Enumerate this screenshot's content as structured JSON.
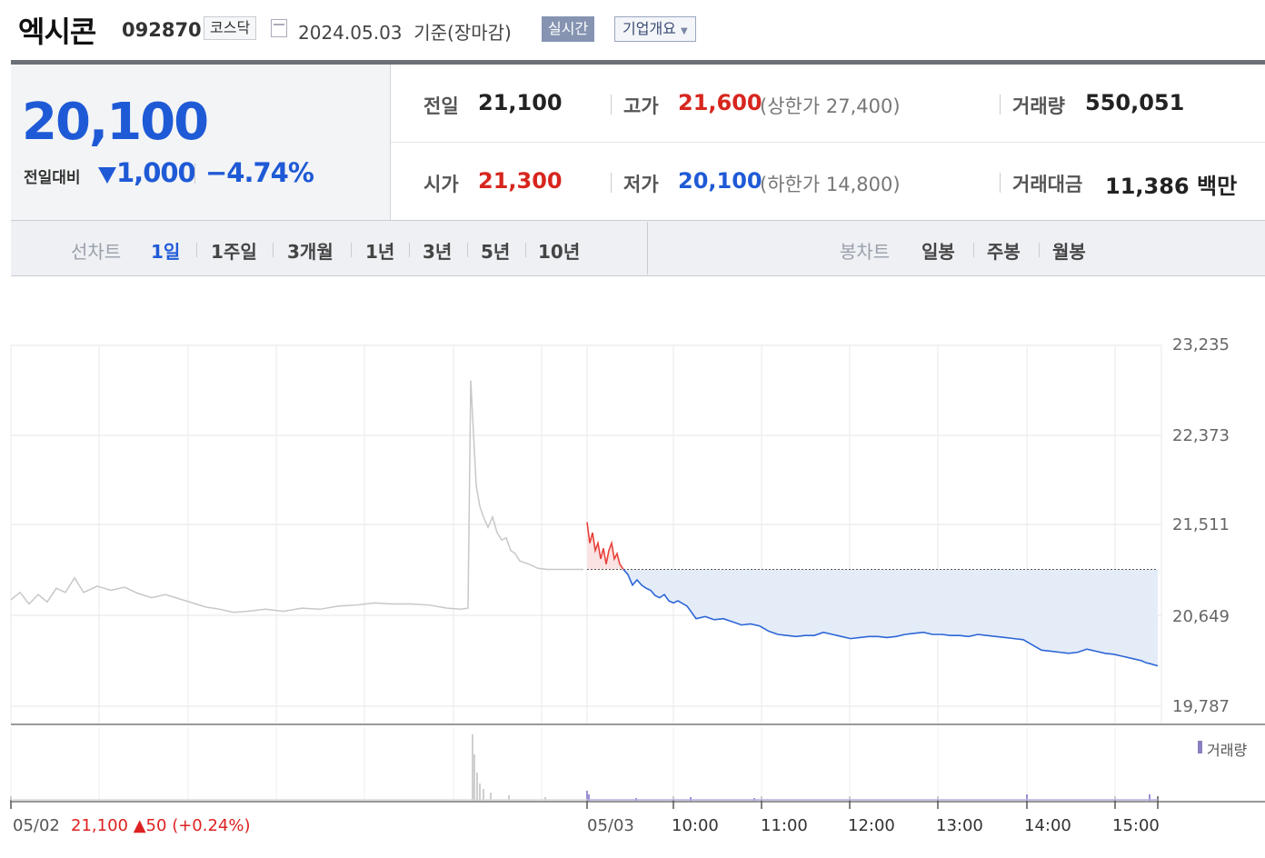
{
  "header": {
    "name": "엑시콘",
    "code": "092870",
    "market": "코스닥",
    "date": "2024.05.03",
    "basis": "기준(장마감)",
    "realtime": "실시간",
    "corp_info": "기업개요"
  },
  "quote": {
    "price": "20,100",
    "compare_label": "전일대비",
    "change": "1,000",
    "change_pct": "−4.74%",
    "direction": "down"
  },
  "stats": {
    "prev_label": "전일",
    "prev": "21,100",
    "high_label": "고가",
    "high": "21,600",
    "upper_label": "(상한가",
    "upper": "27,400)",
    "volume_label": "거래량",
    "volume": "550,051",
    "open_label": "시가",
    "open": "21,300",
    "low_label": "저가",
    "low": "20,100",
    "lower_label": "(하한가",
    "lower": "14,800)",
    "amount_label": "거래대금",
    "amount": "11,386",
    "amount_unit": "백만"
  },
  "periods": {
    "line_label": "선차트",
    "line_items": [
      "1일",
      "1주일",
      "3개월",
      "1년",
      "3년",
      "5년",
      "10년"
    ],
    "active": "1일",
    "candle_label": "봉차트",
    "candle_items": [
      "일봉",
      "주봉",
      "월봉"
    ]
  },
  "chart_data": {
    "type": "line",
    "y_ticks": [
      "23,235",
      "22,373",
      "21,511",
      "20,649",
      "19,787"
    ],
    "ylim": [
      19787,
      23235
    ],
    "x_ticks": [
      "05/02",
      "05/03",
      "10:00",
      "11:00",
      "12:00",
      "13:00",
      "14:00",
      "15:00"
    ],
    "reference_price": 21100,
    "prev_day_close": "21,100",
    "prev_day_change": "▲50",
    "prev_day_change_pct": "(+0.24%)",
    "volume_legend": "거래량",
    "series_prev_day": [
      [
        0,
        20810
      ],
      [
        10,
        20880
      ],
      [
        20,
        20770
      ],
      [
        30,
        20860
      ],
      [
        40,
        20790
      ],
      [
        50,
        20920
      ],
      [
        60,
        20880
      ],
      [
        70,
        21020
      ],
      [
        80,
        20880
      ],
      [
        95,
        20940
      ],
      [
        110,
        20900
      ],
      [
        125,
        20930
      ],
      [
        140,
        20870
      ],
      [
        155,
        20830
      ],
      [
        170,
        20860
      ],
      [
        185,
        20820
      ],
      [
        200,
        20780
      ],
      [
        215,
        20740
      ],
      [
        230,
        20720
      ],
      [
        245,
        20690
      ],
      [
        260,
        20700
      ],
      [
        280,
        20720
      ],
      [
        300,
        20700
      ],
      [
        320,
        20730
      ],
      [
        340,
        20720
      ],
      [
        360,
        20750
      ],
      [
        380,
        20760
      ],
      [
        400,
        20780
      ],
      [
        420,
        20770
      ],
      [
        440,
        20770
      ],
      [
        460,
        20760
      ],
      [
        480,
        20730
      ],
      [
        495,
        20720
      ],
      [
        503,
        20730
      ],
      [
        506,
        22900
      ],
      [
        509,
        22400
      ],
      [
        512,
        21900
      ],
      [
        516,
        21700
      ],
      [
        520,
        21600
      ],
      [
        525,
        21500
      ],
      [
        530,
        21600
      ],
      [
        535,
        21450
      ],
      [
        540,
        21380
      ],
      [
        545,
        21400
      ],
      [
        550,
        21280
      ],
      [
        555,
        21250
      ],
      [
        560,
        21180
      ],
      [
        570,
        21150
      ],
      [
        580,
        21110
      ],
      [
        590,
        21100
      ],
      [
        630,
        21100
      ]
    ],
    "series_today": [
      [
        0,
        21550
      ],
      [
        3,
        21350
      ],
      [
        6,
        21450
      ],
      [
        9,
        21280
      ],
      [
        12,
        21350
      ],
      [
        15,
        21200
      ],
      [
        18,
        21300
      ],
      [
        21,
        21150
      ],
      [
        24,
        21280
      ],
      [
        27,
        21350
      ],
      [
        30,
        21200
      ],
      [
        33,
        21250
      ],
      [
        36,
        21150
      ],
      [
        40,
        21100
      ],
      [
        45,
        21050
      ],
      [
        50,
        20950
      ],
      [
        55,
        21000
      ],
      [
        60,
        20950
      ],
      [
        65,
        20920
      ],
      [
        70,
        20900
      ],
      [
        75,
        20850
      ],
      [
        80,
        20830
      ],
      [
        85,
        20860
      ],
      [
        90,
        20800
      ],
      [
        95,
        20780
      ],
      [
        100,
        20800
      ],
      [
        110,
        20750
      ],
      [
        120,
        20630
      ],
      [
        130,
        20650
      ],
      [
        140,
        20620
      ],
      [
        150,
        20630
      ],
      [
        160,
        20600
      ],
      [
        170,
        20570
      ],
      [
        180,
        20580
      ],
      [
        190,
        20560
      ],
      [
        200,
        20510
      ],
      [
        210,
        20480
      ],
      [
        220,
        20470
      ],
      [
        230,
        20460
      ],
      [
        240,
        20470
      ],
      [
        250,
        20470
      ],
      [
        260,
        20500
      ],
      [
        270,
        20480
      ],
      [
        280,
        20460
      ],
      [
        290,
        20440
      ],
      [
        300,
        20450
      ],
      [
        310,
        20460
      ],
      [
        320,
        20460
      ],
      [
        330,
        20450
      ],
      [
        340,
        20460
      ],
      [
        350,
        20480
      ],
      [
        360,
        20490
      ],
      [
        370,
        20500
      ],
      [
        380,
        20480
      ],
      [
        390,
        20480
      ],
      [
        400,
        20470
      ],
      [
        410,
        20470
      ],
      [
        420,
        20460
      ],
      [
        430,
        20480
      ],
      [
        440,
        20470
      ],
      [
        450,
        20460
      ],
      [
        460,
        20450
      ],
      [
        470,
        20440
      ],
      [
        480,
        20430
      ],
      [
        490,
        20380
      ],
      [
        500,
        20330
      ],
      [
        510,
        20320
      ],
      [
        520,
        20310
      ],
      [
        530,
        20300
      ],
      [
        540,
        20310
      ],
      [
        550,
        20340
      ],
      [
        560,
        20320
      ],
      [
        570,
        20300
      ],
      [
        580,
        20290
      ],
      [
        590,
        20270
      ],
      [
        600,
        20250
      ],
      [
        610,
        20230
      ],
      [
        615,
        20210
      ],
      [
        620,
        20200
      ],
      [
        628,
        20180
      ]
    ]
  }
}
